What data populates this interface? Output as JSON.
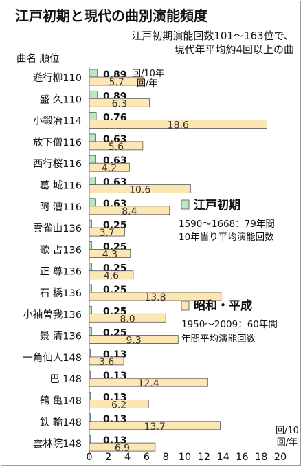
{
  "chart_data": {
    "type": "bar",
    "orientation": "horizontal",
    "title": "江戸初期と現代の曲別演能頻度",
    "subtitle": [
      "江戸初期演能回数101～163位で、",
      "現代年平均約4回以上の曲"
    ],
    "header": "曲名 順位",
    "categories": [
      "遊行柳110",
      "盛 久110",
      "小鍛冶114",
      "放下僧116",
      "西行桜116",
      "葛 城116",
      "阿 漕116",
      "雲雀山136",
      "歌 占136",
      "正 尊136",
      "石 橋136",
      "小袖曽我136",
      "景 清136",
      "一角仙人148",
      "巴 148",
      "鶴 亀148",
      "鉄 輪148",
      "雲林院148"
    ],
    "series": [
      {
        "name": "江戸初期",
        "color": "#b9e8c5",
        "values": [
          0.89,
          0.89,
          0.76,
          0.63,
          0.63,
          0.63,
          0.63,
          0.25,
          0.25,
          0.25,
          0.25,
          0.25,
          0.25,
          0.13,
          0.13,
          0.13,
          0.13,
          0.13
        ],
        "labels": [
          "0.89",
          "0.89",
          "0.76",
          "0.63",
          "0.63",
          "0.63",
          "0.63",
          "0.25",
          "0.25",
          "0.25",
          "0.25",
          "0.25",
          "0.25",
          "0.13",
          "0.13",
          "0.13",
          "0.13",
          "0.13"
        ]
      },
      {
        "name": "昭和・平成",
        "color": "#fbe6b4",
        "values": [
          5.7,
          6.3,
          18.6,
          5.6,
          4.2,
          10.6,
          8.4,
          3.7,
          4.3,
          4.6,
          13.8,
          8.0,
          9.3,
          3.6,
          12.4,
          6.2,
          13.7,
          6.9
        ],
        "labels": [
          "5.7",
          "6.3",
          "18.6",
          "5.6",
          "4.2",
          "10.6",
          "8.4",
          "3.7",
          "4.3",
          "4.6",
          "13.8",
          "8.0",
          "9.3",
          "3.6",
          "12.4",
          "6.2",
          "13.7",
          "6.9"
        ]
      }
    ],
    "first_row_units": [
      "回/10年",
      "回/年"
    ],
    "axis_unit": [
      "回/10",
      "回/年"
    ],
    "xlim": [
      0,
      20
    ],
    "xticks": [
      "0",
      "2",
      "4",
      "6",
      "8",
      "10",
      "12",
      "14",
      "16",
      "18",
      "20"
    ],
    "grid": false,
    "legend": [
      {
        "title": "江戸初期",
        "desc": [
          "1590～1668：79年間",
          "10年当り平均演能回数"
        ],
        "color": "#b9e8c5"
      },
      {
        "title": "昭和・平成",
        "desc": [
          "1950～2009：60年間",
          "年間平均演能回数"
        ],
        "color": "#fbe6b4"
      }
    ]
  }
}
